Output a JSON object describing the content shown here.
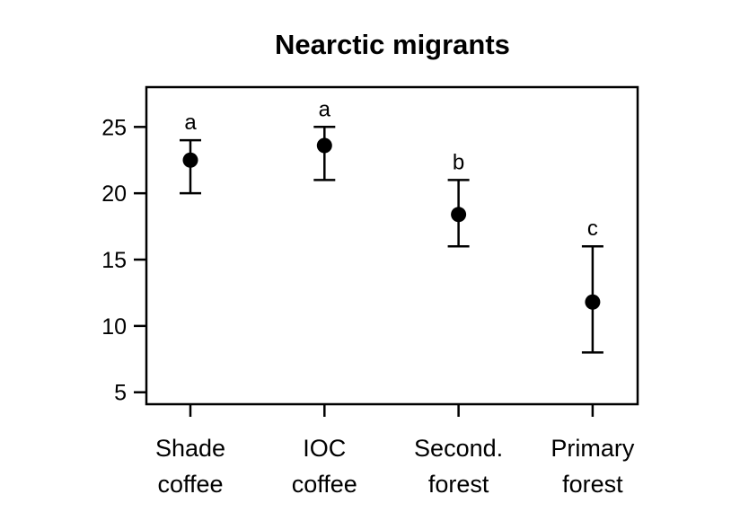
{
  "chart_data": {
    "type": "scatter",
    "subtype": "point-with-error-bars",
    "title": "Nearctic migrants",
    "xlabel": "",
    "ylabel": "",
    "ylim": [
      4.1,
      28
    ],
    "yticks": [
      5,
      10,
      15,
      20,
      25
    ],
    "grid": false,
    "categories": [
      {
        "line1": "Shade",
        "line2": "coffee"
      },
      {
        "line1": "IOC",
        "line2": "coffee"
      },
      {
        "line1": "Second.",
        "line2": "forest"
      },
      {
        "line1": "Primary",
        "line2": "forest"
      }
    ],
    "values": [
      22.5,
      23.6,
      18.4,
      11.8
    ],
    "error_low": [
      20,
      21,
      16,
      8
    ],
    "error_high": [
      24,
      25,
      21,
      16
    ],
    "group_letters": [
      "a",
      "a",
      "b",
      "c"
    ],
    "color": "#000000"
  }
}
